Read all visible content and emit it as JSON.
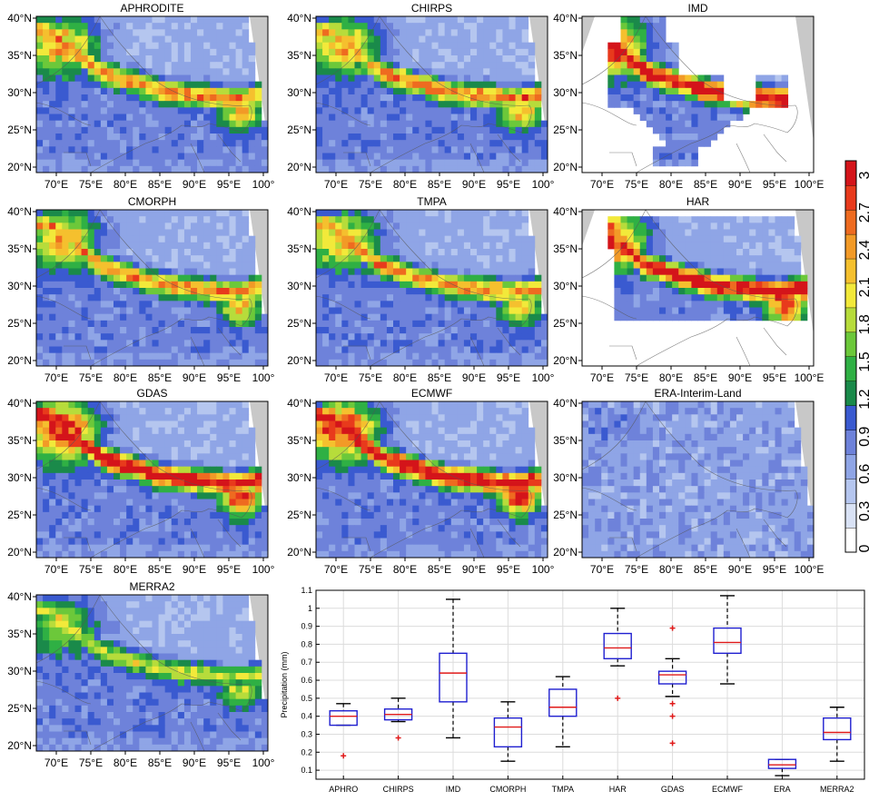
{
  "figure": {
    "map_panels": [
      {
        "title": "APHRODITE",
        "coverage": "full",
        "hotspot": "moderate"
      },
      {
        "title": "CHIRPS",
        "coverage": "full",
        "hotspot": "moderate"
      },
      {
        "title": "IMD",
        "coverage": "india",
        "hotspot": "strong"
      },
      {
        "title": "CMORPH",
        "coverage": "full",
        "hotspot": "moderate"
      },
      {
        "title": "TMPA",
        "coverage": "full",
        "hotspot": "moderate"
      },
      {
        "title": "HAR",
        "coverage": "har",
        "hotspot": "strong"
      },
      {
        "title": "GDAS",
        "coverage": "full",
        "hotspot": "strong"
      },
      {
        "title": "ECMWF",
        "coverage": "full",
        "hotspot": "strong"
      },
      {
        "title": "ERA-Interim-Land",
        "coverage": "full",
        "hotspot": "none"
      },
      {
        "title": "MERRA2",
        "coverage": "full",
        "hotspot": "weak"
      }
    ],
    "lat_ticks": [
      "40°N",
      "35°N",
      "30°N",
      "25°N",
      "20°N"
    ],
    "lon_ticks": [
      "70°E",
      "75°E",
      "80°E",
      "85°E",
      "90°E",
      "95°E",
      "100°"
    ],
    "lon_ticks_wide": [
      "70°E",
      "75°E",
      "80°E",
      "85°E",
      "90°E",
      "95°E",
      "100°E"
    ],
    "colorbar": {
      "labels": [
        "0",
        "0.3",
        "0.6",
        "0.9",
        "1.2",
        "1.5",
        "1.8",
        "2.1",
        "2.4",
        "2.7",
        "3"
      ],
      "colors": [
        "#ffffff",
        "#d9e2f5",
        "#b5c6ef",
        "#8fa5e6",
        "#6e82da",
        "#3a5ad0",
        "#1a8a4a",
        "#2fb044",
        "#6cc83a",
        "#b7dc3b",
        "#f2e93a",
        "#f5c02e",
        "#f29a27",
        "#ee6b20",
        "#e83a1c",
        "#d4141a"
      ]
    }
  },
  "chart_data": {
    "type": "box",
    "ylabel": "Precipitation (mm)",
    "ylim": [
      0.05,
      1.1
    ],
    "yticks": [
      "0.1",
      "0.2",
      "0.3",
      "0.4",
      "0.5",
      "0.6",
      "0.7",
      "0.8",
      "0.9",
      "1",
      "1.1"
    ],
    "grid": true,
    "categories": [
      "APHRO",
      "CHIRPS",
      "IMD",
      "CMORPH",
      "TMPA",
      "HAR",
      "GDAS",
      "ECMWF",
      "ERA",
      "MERRA2"
    ],
    "boxes": [
      {
        "label": "APHRO",
        "whisker_low": 0.35,
        "q1": 0.35,
        "median": 0.4,
        "q3": 0.43,
        "whisker_high": 0.47,
        "outliers": [
          0.18
        ]
      },
      {
        "label": "CHIRPS",
        "whisker_low": 0.37,
        "q1": 0.38,
        "median": 0.41,
        "q3": 0.44,
        "whisker_high": 0.5,
        "outliers": [
          0.28
        ]
      },
      {
        "label": "IMD",
        "whisker_low": 0.28,
        "q1": 0.48,
        "median": 0.64,
        "q3": 0.75,
        "whisker_high": 1.05,
        "outliers": []
      },
      {
        "label": "CMORPH",
        "whisker_low": 0.15,
        "q1": 0.23,
        "median": 0.34,
        "q3": 0.39,
        "whisker_high": 0.48,
        "outliers": []
      },
      {
        "label": "TMPA",
        "whisker_low": 0.23,
        "q1": 0.4,
        "median": 0.45,
        "q3": 0.55,
        "whisker_high": 0.62,
        "outliers": []
      },
      {
        "label": "HAR",
        "whisker_low": 0.68,
        "q1": 0.72,
        "median": 0.78,
        "q3": 0.86,
        "whisker_high": 1.0,
        "outliers": [
          0.5
        ]
      },
      {
        "label": "GDAS",
        "whisker_low": 0.51,
        "q1": 0.58,
        "median": 0.63,
        "q3": 0.65,
        "whisker_high": 0.72,
        "outliers": [
          0.89,
          0.47,
          0.4,
          0.25
        ]
      },
      {
        "label": "ECMWF",
        "whisker_low": 0.58,
        "q1": 0.75,
        "median": 0.81,
        "q3": 0.89,
        "whisker_high": 1.07,
        "outliers": []
      },
      {
        "label": "ERA",
        "whisker_low": 0.07,
        "q1": 0.11,
        "median": 0.13,
        "q3": 0.16,
        "whisker_high": 0.16,
        "outliers": []
      },
      {
        "label": "MERRA2",
        "whisker_low": 0.15,
        "q1": 0.27,
        "median": 0.31,
        "q3": 0.39,
        "whisker_high": 0.45,
        "outliers": []
      }
    ],
    "colors": {
      "box": "#1f1fd0",
      "median": "#e01a1a",
      "outlier": "#e01a1a",
      "whisker": "#000000",
      "grid": "#dcdcdc"
    }
  }
}
